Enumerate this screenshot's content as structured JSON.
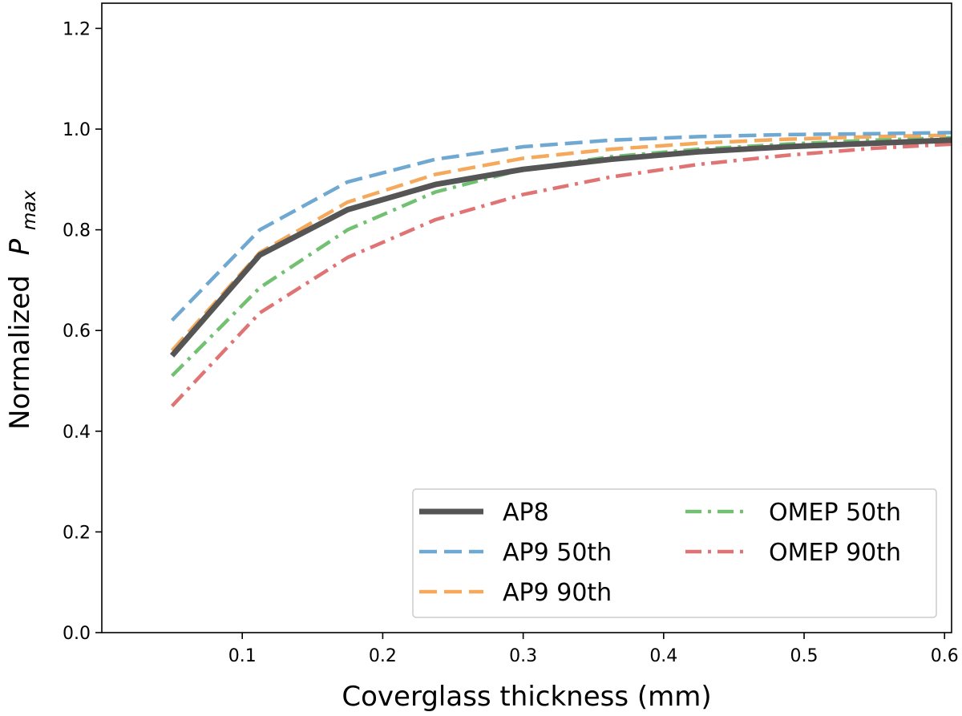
{
  "chart_data": {
    "type": "line",
    "title": "",
    "xlabel": "Coverglass thickness (mm)",
    "ylabel": {
      "prefix": "Normalized",
      "symbol": "P",
      "subscript": "max"
    },
    "xlim": [
      0.0,
      0.605
    ],
    "ylim": [
      0.0,
      1.25
    ],
    "xticks": [
      0.1,
      0.2,
      0.3,
      0.4,
      0.5,
      0.6
    ],
    "xtick_labels": [
      "0.1",
      "0.2",
      "0.3",
      "0.4",
      "0.5",
      "0.6"
    ],
    "yticks": [
      0.0,
      0.2,
      0.4,
      0.6,
      0.8,
      1.0,
      1.2
    ],
    "ytick_labels": [
      "0.0",
      "0.2",
      "0.4",
      "0.6",
      "0.8",
      "1.0",
      "1.2"
    ],
    "grid": false,
    "legend_position": "lower-right",
    "x": [
      0.05,
      0.1125,
      0.175,
      0.2375,
      0.3,
      0.3625,
      0.425,
      0.4875,
      0.55,
      0.605
    ],
    "series": [
      {
        "name": "AP8",
        "color": "#555555",
        "dash": "solid",
        "values": [
          0.55,
          0.75,
          0.84,
          0.89,
          0.92,
          0.94,
          0.955,
          0.965,
          0.972,
          0.978
        ]
      },
      {
        "name": "AP9 50th",
        "color": "#6fa8d0",
        "dash": "dashed",
        "values": [
          0.62,
          0.8,
          0.895,
          0.94,
          0.965,
          0.978,
          0.985,
          0.989,
          0.991,
          0.993
        ]
      },
      {
        "name": "AP9 90th",
        "color": "#f5a95c",
        "dash": "dashed",
        "values": [
          0.56,
          0.755,
          0.855,
          0.91,
          0.942,
          0.96,
          0.972,
          0.98,
          0.985,
          0.988
        ]
      },
      {
        "name": "OMEP 50th",
        "color": "#72c172",
        "dash": "dashdot",
        "values": [
          0.51,
          0.685,
          0.8,
          0.875,
          0.92,
          0.945,
          0.96,
          0.97,
          0.978,
          0.983
        ]
      },
      {
        "name": "OMEP 90th",
        "color": "#e07474",
        "dash": "dashdot",
        "values": [
          0.45,
          0.635,
          0.745,
          0.82,
          0.87,
          0.905,
          0.93,
          0.948,
          0.962,
          0.97
        ]
      }
    ]
  }
}
